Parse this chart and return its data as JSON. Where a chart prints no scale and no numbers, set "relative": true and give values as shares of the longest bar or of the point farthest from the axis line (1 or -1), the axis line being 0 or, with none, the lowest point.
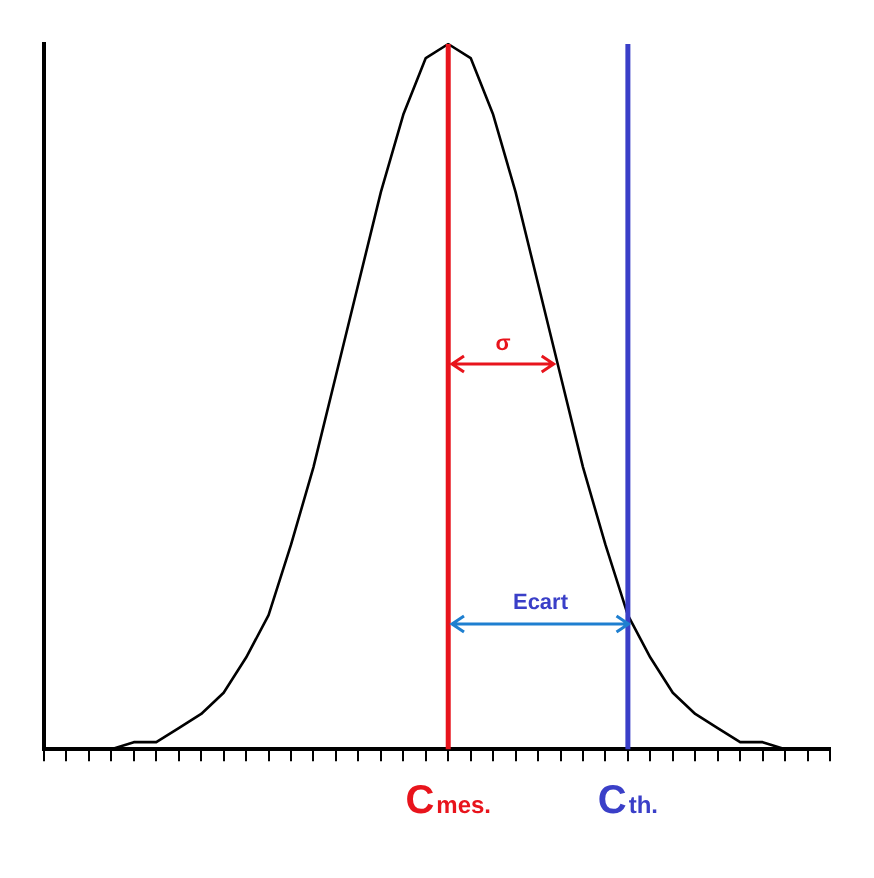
{
  "chart_data": {
    "type": "line",
    "relative": true,
    "categories": [
      null,
      null,
      null,
      null,
      null,
      null,
      null,
      null,
      null,
      null,
      null,
      null,
      null,
      null,
      null,
      null,
      null,
      null,
      "C$_{mes.}$",
      null,
      null,
      null,
      null,
      null,
      null,
      null,
      "C$_{th.}$",
      null,
      null,
      null,
      null,
      null,
      null,
      null,
      null,
      null
    ],
    "series": [
      {
        "color": "#000000",
        "values": [
          0.0,
          0.0,
          0.0,
          0.0,
          0.01,
          0.01,
          0.03,
          0.05,
          0.08,
          0.13,
          0.19,
          0.29,
          0.4,
          0.53,
          0.66,
          0.79,
          0.9,
          0.98,
          1.0,
          0.98,
          0.9,
          0.79,
          0.66,
          0.53,
          0.4,
          0.29,
          0.19,
          0.13,
          0.08,
          0.05,
          0.03,
          0.01,
          0.01,
          0.0,
          0.0,
          0.0
        ]
      }
    ],
    "ref_lines": [
      {
        "axis": "x",
        "value": "C$_{mes.}$",
        "color": "#e8141c"
      },
      {
        "axis": "x",
        "value": "C$_{th.}$",
        "color": "#3a3fc8"
      }
    ],
    "annotations": [
      {
        "text": "σ",
        "x": "C$_{mes.}$",
        "y": 0.545
      },
      {
        "text": "Ecart",
        "x": "C$_{mes.}$",
        "y": 0.177
      }
    ],
    "grid": false,
    "legend": false,
    "marker": "none",
    "line_style": "solid"
  }
}
